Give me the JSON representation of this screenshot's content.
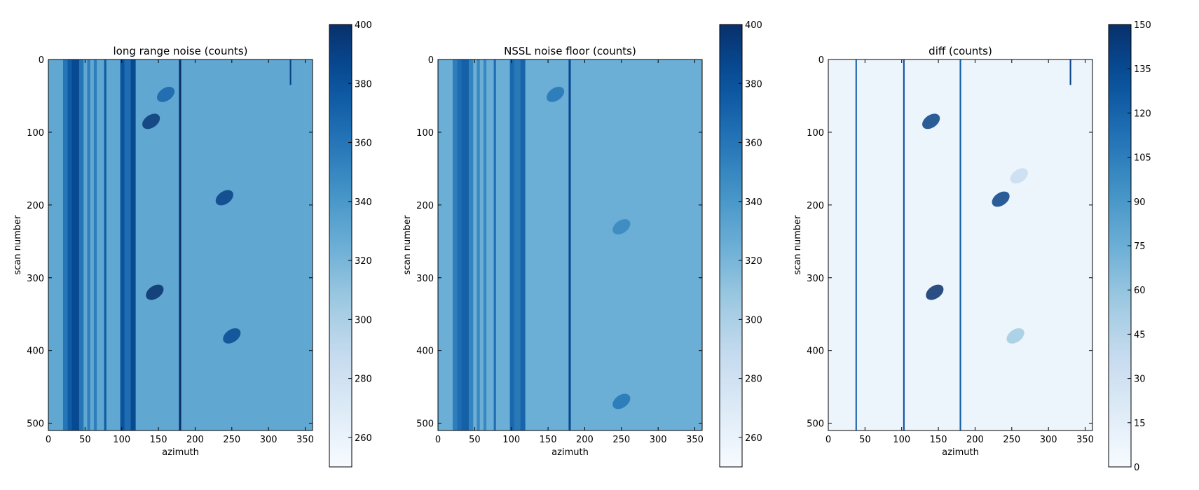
{
  "chart_data": [
    {
      "type": "heatmap",
      "title": "long range noise (counts)",
      "xlabel": "azimuth",
      "ylabel": "scan number",
      "x_range": [
        0,
        360
      ],
      "y_range": [
        0,
        510
      ],
      "y_inverted": true,
      "x_ticks": [
        0,
        50,
        100,
        150,
        200,
        250,
        300,
        350
      ],
      "y_ticks": [
        0,
        100,
        200,
        300,
        400,
        500
      ],
      "colormap": "Blues",
      "color_range": [
        250,
        400
      ],
      "colorbar_ticks": [
        260,
        280,
        300,
        320,
        340,
        360,
        380,
        400
      ],
      "base_level": 330,
      "vertical_bands": [
        {
          "azimuth": [
            20,
            26
          ],
          "value": 360
        },
        {
          "azimuth": [
            26,
            32
          ],
          "value": 375
        },
        {
          "azimuth": [
            32,
            42
          ],
          "value": 385
        },
        {
          "azimuth": [
            42,
            48
          ],
          "value": 360
        },
        {
          "azimuth": [
            53,
            57
          ],
          "value": 355
        },
        {
          "azimuth": [
            62,
            66
          ],
          "value": 355
        },
        {
          "azimuth": [
            76,
            79
          ],
          "value": 375
        },
        {
          "azimuth": [
            98,
            104
          ],
          "value": 380
        },
        {
          "azimuth": [
            104,
            112
          ],
          "value": 365
        },
        {
          "azimuth": [
            112,
            119
          ],
          "value": 385
        },
        {
          "azimuth": [
            178,
            181
          ],
          "value": 400
        },
        {
          "azimuth": [
            329,
            331
          ],
          "value": 390,
          "scan": [
            0,
            35
          ]
        }
      ],
      "features": [
        {
          "azimuth": 140,
          "scan": 85,
          "value": 395
        },
        {
          "azimuth": 240,
          "scan": 190,
          "value": 390
        },
        {
          "azimuth": 145,
          "scan": 320,
          "value": 400
        },
        {
          "azimuth": 250,
          "scan": 380,
          "value": 385
        },
        {
          "azimuth": 160,
          "scan": 48,
          "value": 370
        }
      ]
    },
    {
      "type": "heatmap",
      "title": "NSSL noise floor (counts)",
      "xlabel": "azimuth",
      "ylabel": "scan number",
      "x_range": [
        0,
        360
      ],
      "y_range": [
        0,
        510
      ],
      "y_inverted": true,
      "x_ticks": [
        0,
        50,
        100,
        150,
        200,
        250,
        300,
        350
      ],
      "y_ticks": [
        0,
        100,
        200,
        300,
        400,
        500
      ],
      "colormap": "Blues",
      "color_range": [
        250,
        400
      ],
      "colorbar_ticks": [
        260,
        280,
        300,
        320,
        340,
        360,
        380,
        400
      ],
      "base_level": 325,
      "vertical_bands": [
        {
          "azimuth": [
            20,
            26
          ],
          "value": 355
        },
        {
          "azimuth": [
            26,
            32
          ],
          "value": 365
        },
        {
          "azimuth": [
            32,
            42
          ],
          "value": 372
        },
        {
          "azimuth": [
            42,
            48
          ],
          "value": 352
        },
        {
          "azimuth": [
            53,
            57
          ],
          "value": 350
        },
        {
          "azimuth": [
            62,
            66
          ],
          "value": 350
        },
        {
          "azimuth": [
            76,
            79
          ],
          "value": 365
        },
        {
          "azimuth": [
            98,
            104
          ],
          "value": 368
        },
        {
          "azimuth": [
            104,
            112
          ],
          "value": 358
        },
        {
          "azimuth": [
            112,
            119
          ],
          "value": 370
        },
        {
          "azimuth": [
            178,
            181
          ],
          "value": 385
        }
      ],
      "features": [
        {
          "azimuth": 160,
          "scan": 48,
          "value": 360
        },
        {
          "azimuth": 250,
          "scan": 230,
          "value": 350
        },
        {
          "azimuth": 250,
          "scan": 470,
          "value": 360
        }
      ]
    },
    {
      "type": "heatmap",
      "title": "diff (counts)",
      "xlabel": "azimuth",
      "ylabel": "scan number",
      "x_range": [
        0,
        360
      ],
      "y_range": [
        0,
        510
      ],
      "y_inverted": true,
      "x_ticks": [
        0,
        50,
        100,
        150,
        200,
        250,
        300,
        350
      ],
      "y_ticks": [
        0,
        100,
        200,
        300,
        400,
        500
      ],
      "colormap": "Blues",
      "color_range": [
        0,
        150
      ],
      "colorbar_ticks": [
        0,
        15,
        30,
        45,
        60,
        75,
        90,
        105,
        120,
        135,
        150
      ],
      "base_level": 8,
      "vertical_bands": [
        {
          "azimuth": [
            37,
            39
          ],
          "value": 120
        },
        {
          "azimuth": [
            102,
            104
          ],
          "value": 130
        },
        {
          "azimuth": [
            179,
            181
          ],
          "value": 125
        },
        {
          "azimuth": [
            329,
            331
          ],
          "value": 140,
          "scan": [
            0,
            35
          ]
        }
      ],
      "features": [
        {
          "azimuth": 140,
          "scan": 85,
          "value": 140
        },
        {
          "azimuth": 235,
          "scan": 192,
          "value": 140
        },
        {
          "azimuth": 145,
          "scan": 320,
          "value": 150
        },
        {
          "azimuth": 255,
          "scan": 380,
          "value": 55
        },
        {
          "azimuth": 260,
          "scan": 160,
          "value": 35
        }
      ]
    }
  ]
}
